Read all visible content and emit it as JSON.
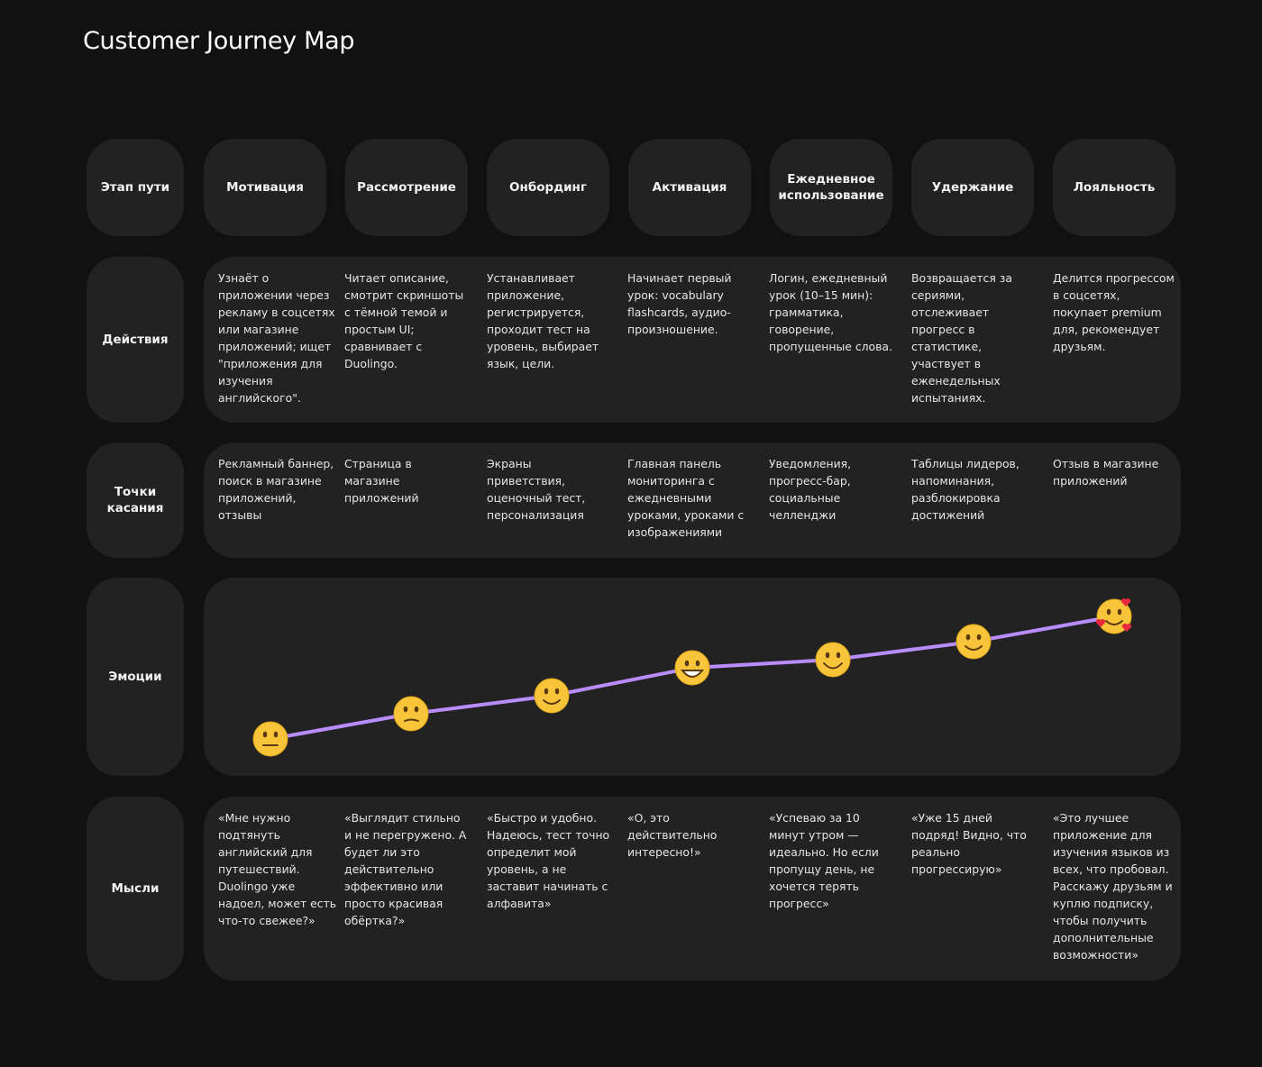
{
  "title": "Customer Journey Map",
  "stage_label": "Этап пути",
  "stages": [
    "Мотивация",
    "Рассмотрение",
    "Онбординг",
    "Активация",
    "Ежедневное использование",
    "Удержание",
    "Лояльность"
  ],
  "rows": [
    {
      "label": "Действия",
      "cells": [
        "Узнаёт о приложении через рекламу в соцсетях или магазине приложений; ищет \"приложения для изучения английского\".",
        "Читает описание, смотрит скриншоты с тёмной темой и простым UI; сравнивает с Duolingo.",
        "Устанавливает приложение, регистрируется, проходит тест на уровень, выбирает язык, цели.",
        "Начинает первый урок: vocabulary flashcards, аудио-произношение.",
        "Логин, ежедневный урок (10–15 мин): грамматика, говорение, пропущенные слова.",
        "Возвращается за сериями, отслеживает прогресс в статистике, участвует в еженедельных испытаниях.",
        "Делится прогрессом в соцсетях, покупает premium для, рекомендует друзьям."
      ]
    },
    {
      "label": "Точки касания",
      "cells": [
        "Рекламный баннер, поиск в магазине приложений, отзывы",
        "Страница в магазине приложений",
        "Экраны приветствия, оценочный тест, персонализация",
        "Главная панель мониторинга с ежедневными уроками, уроками с изображениями",
        "Уведомления, прогресс-бар, социальные челленджи",
        "Таблицы лидеров, напоминания, разблокировка достижений",
        "Отзыв в магазине приложений"
      ]
    },
    {
      "label": "Эмоции",
      "cells": []
    },
    {
      "label": "Мысли",
      "cells": [
        "«Мне нужно подтянуть английский для путешествий. Duolingo уже надоел, может есть что-то свежее?»",
        "«Выглядит стильно и не перегружено. А будет ли это действительно эффективно или просто красивая обёртка?»",
        "«Быстро и удобно. Надеюсь, тест точно определит мой уровень, а не заставит начинать с алфавита»",
        "«О, это действительно интересно!»",
        "«Успеваю за 10 минут утром — идеально. Но если пропущу день, не хочется терять прогресс»",
        "«Уже 15 дней подряд! Видно, что реально прогрессирую»",
        "«Это лучшее приложение для изучения языков из всех, что пробовал. Расскажу друзьям и куплю подписку, чтобы получить дополнительные возможности»"
      ]
    }
  ]
}
